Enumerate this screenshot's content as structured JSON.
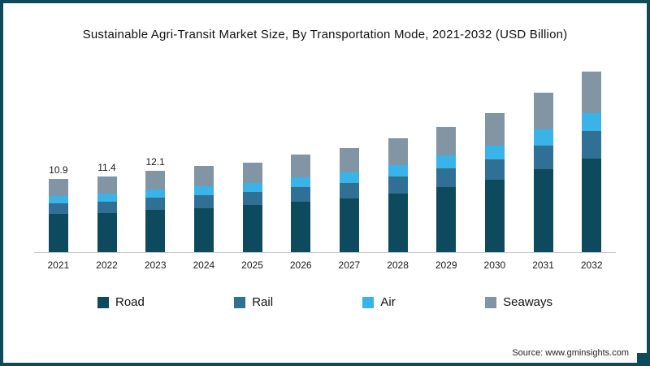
{
  "frame": {
    "border_color": "#0d4a5c"
  },
  "title": "Sustainable Agri-Transit Market Size, By Transportation Mode, 2021-2032 (USD Billion)",
  "source": "Source: www.gminsights.com",
  "chart_data": {
    "type": "bar",
    "subtype": "stacked",
    "title": "Sustainable Agri-Transit Market Size, By Transportation Mode, 2021-2032 (USD Billion)",
    "xlabel": "",
    "ylabel": "USD Billion",
    "ylim": [
      0,
      28
    ],
    "grid": false,
    "legend_position": "bottom",
    "categories": [
      "2021",
      "2022",
      "2023",
      "2024",
      "2025",
      "2026",
      "2027",
      "2028",
      "2029",
      "2030",
      "2031",
      "2032"
    ],
    "series": [
      {
        "name": "Road",
        "color": "#0e4a5e",
        "values": [
          5.7,
          5.9,
          6.3,
          6.6,
          7.1,
          7.6,
          8.1,
          8.8,
          9.7,
          10.9,
          12.4,
          14.0
        ]
      },
      {
        "name": "Rail",
        "color": "#2f7094",
        "values": [
          1.6,
          1.7,
          1.8,
          1.9,
          2.0,
          2.2,
          2.3,
          2.5,
          2.8,
          3.0,
          3.5,
          4.1
        ]
      },
      {
        "name": "Air",
        "color": "#3ab4e8",
        "values": [
          1.1,
          1.2,
          1.2,
          1.3,
          1.4,
          1.5,
          1.6,
          1.7,
          1.9,
          2.1,
          2.4,
          2.7
        ]
      },
      {
        "name": "Seaways",
        "color": "#8295a5",
        "values": [
          2.5,
          2.6,
          2.8,
          3.0,
          3.1,
          3.4,
          3.6,
          4.0,
          4.3,
          4.9,
          5.5,
          6.2
        ]
      }
    ],
    "totals": [
      10.9,
      11.4,
      12.1,
      12.8,
      13.6,
      14.7,
      15.6,
      17.0,
      18.7,
      20.9,
      23.8,
      27.0
    ],
    "data_labels": [
      "10.9",
      "11.4",
      "12.1",
      "",
      "",
      "",
      "",
      "",
      "",
      "",
      "",
      ""
    ]
  },
  "legend": {
    "items": [
      {
        "label": "Road",
        "color": "#0e4a5e"
      },
      {
        "label": "Rail",
        "color": "#2f7094"
      },
      {
        "label": "Air",
        "color": "#3ab4e8"
      },
      {
        "label": "Seaways",
        "color": "#8295a5"
      }
    ]
  }
}
